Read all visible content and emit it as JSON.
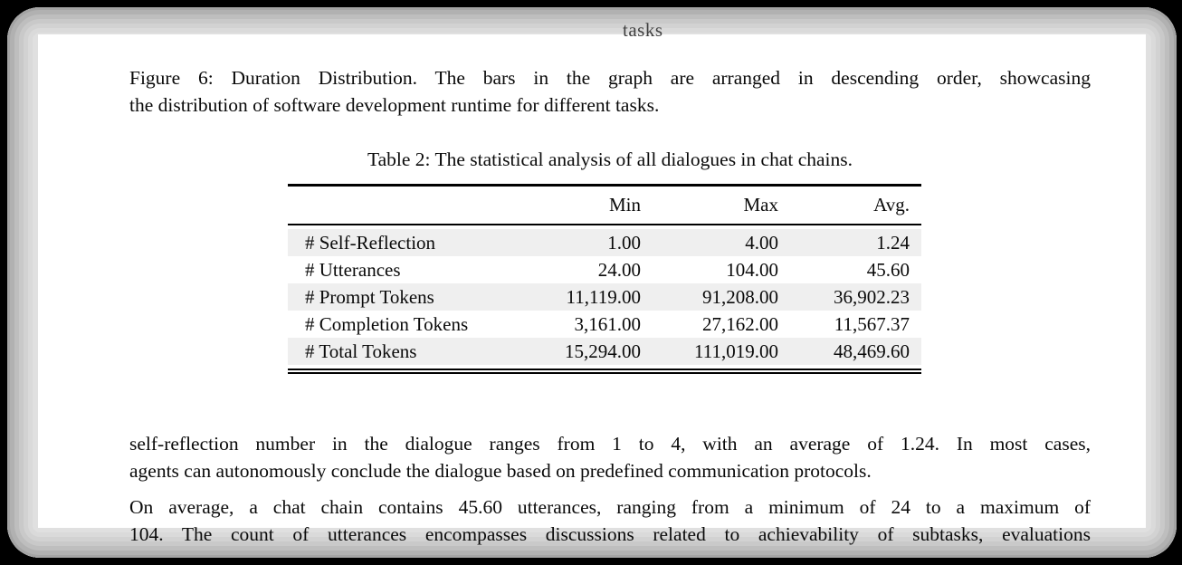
{
  "colors": {
    "backdrop": "#000000",
    "frame_rim": "#d2d2d2",
    "page_bg": "#ffffff",
    "row_shade": "#efefef",
    "text": "#0a0a0a"
  },
  "page": {
    "clipped_top_text": "tasks",
    "figure_caption": {
      "lines": [
        "Figure 6: Duration Distribution. The bars in the graph are arranged in descending order, showcasing",
        "the distribution of software development runtime for different tasks."
      ]
    },
    "table": {
      "caption": "Table 2: The statistical analysis of all dialogues in chat chains.",
      "columns": [
        "",
        "Min",
        "Max",
        "Avg."
      ],
      "rows": [
        {
          "label": "# Self-Reflection",
          "min": "1.00",
          "max": "4.00",
          "avg": "1.24"
        },
        {
          "label": "# Utterances",
          "min": "24.00",
          "max": "104.00",
          "avg": "45.60"
        },
        {
          "label": "# Prompt Tokens",
          "min": "11,119.00",
          "max": "91,208.00",
          "avg": "36,902.23"
        },
        {
          "label": "# Completion Tokens",
          "min": "3,161.00",
          "max": "27,162.00",
          "avg": "11,567.37"
        },
        {
          "label": "# Total Tokens",
          "min": "15,294.00",
          "max": "111,019.00",
          "avg": "48,469.60"
        }
      ]
    },
    "paragraphs": [
      {
        "lines": [
          "self-reflection number in the dialogue ranges from 1 to 4, with an average of 1.24. In most cases,",
          "agents can autonomously conclude the dialogue based on predefined communication protocols."
        ]
      },
      {
        "lines": [
          "On average, a chat chain contains 45.60 utterances, ranging from a minimum of 24 to a maximum of",
          "104. The count of utterances encompasses discussions related to achievability of subtasks, evaluations"
        ]
      }
    ]
  }
}
